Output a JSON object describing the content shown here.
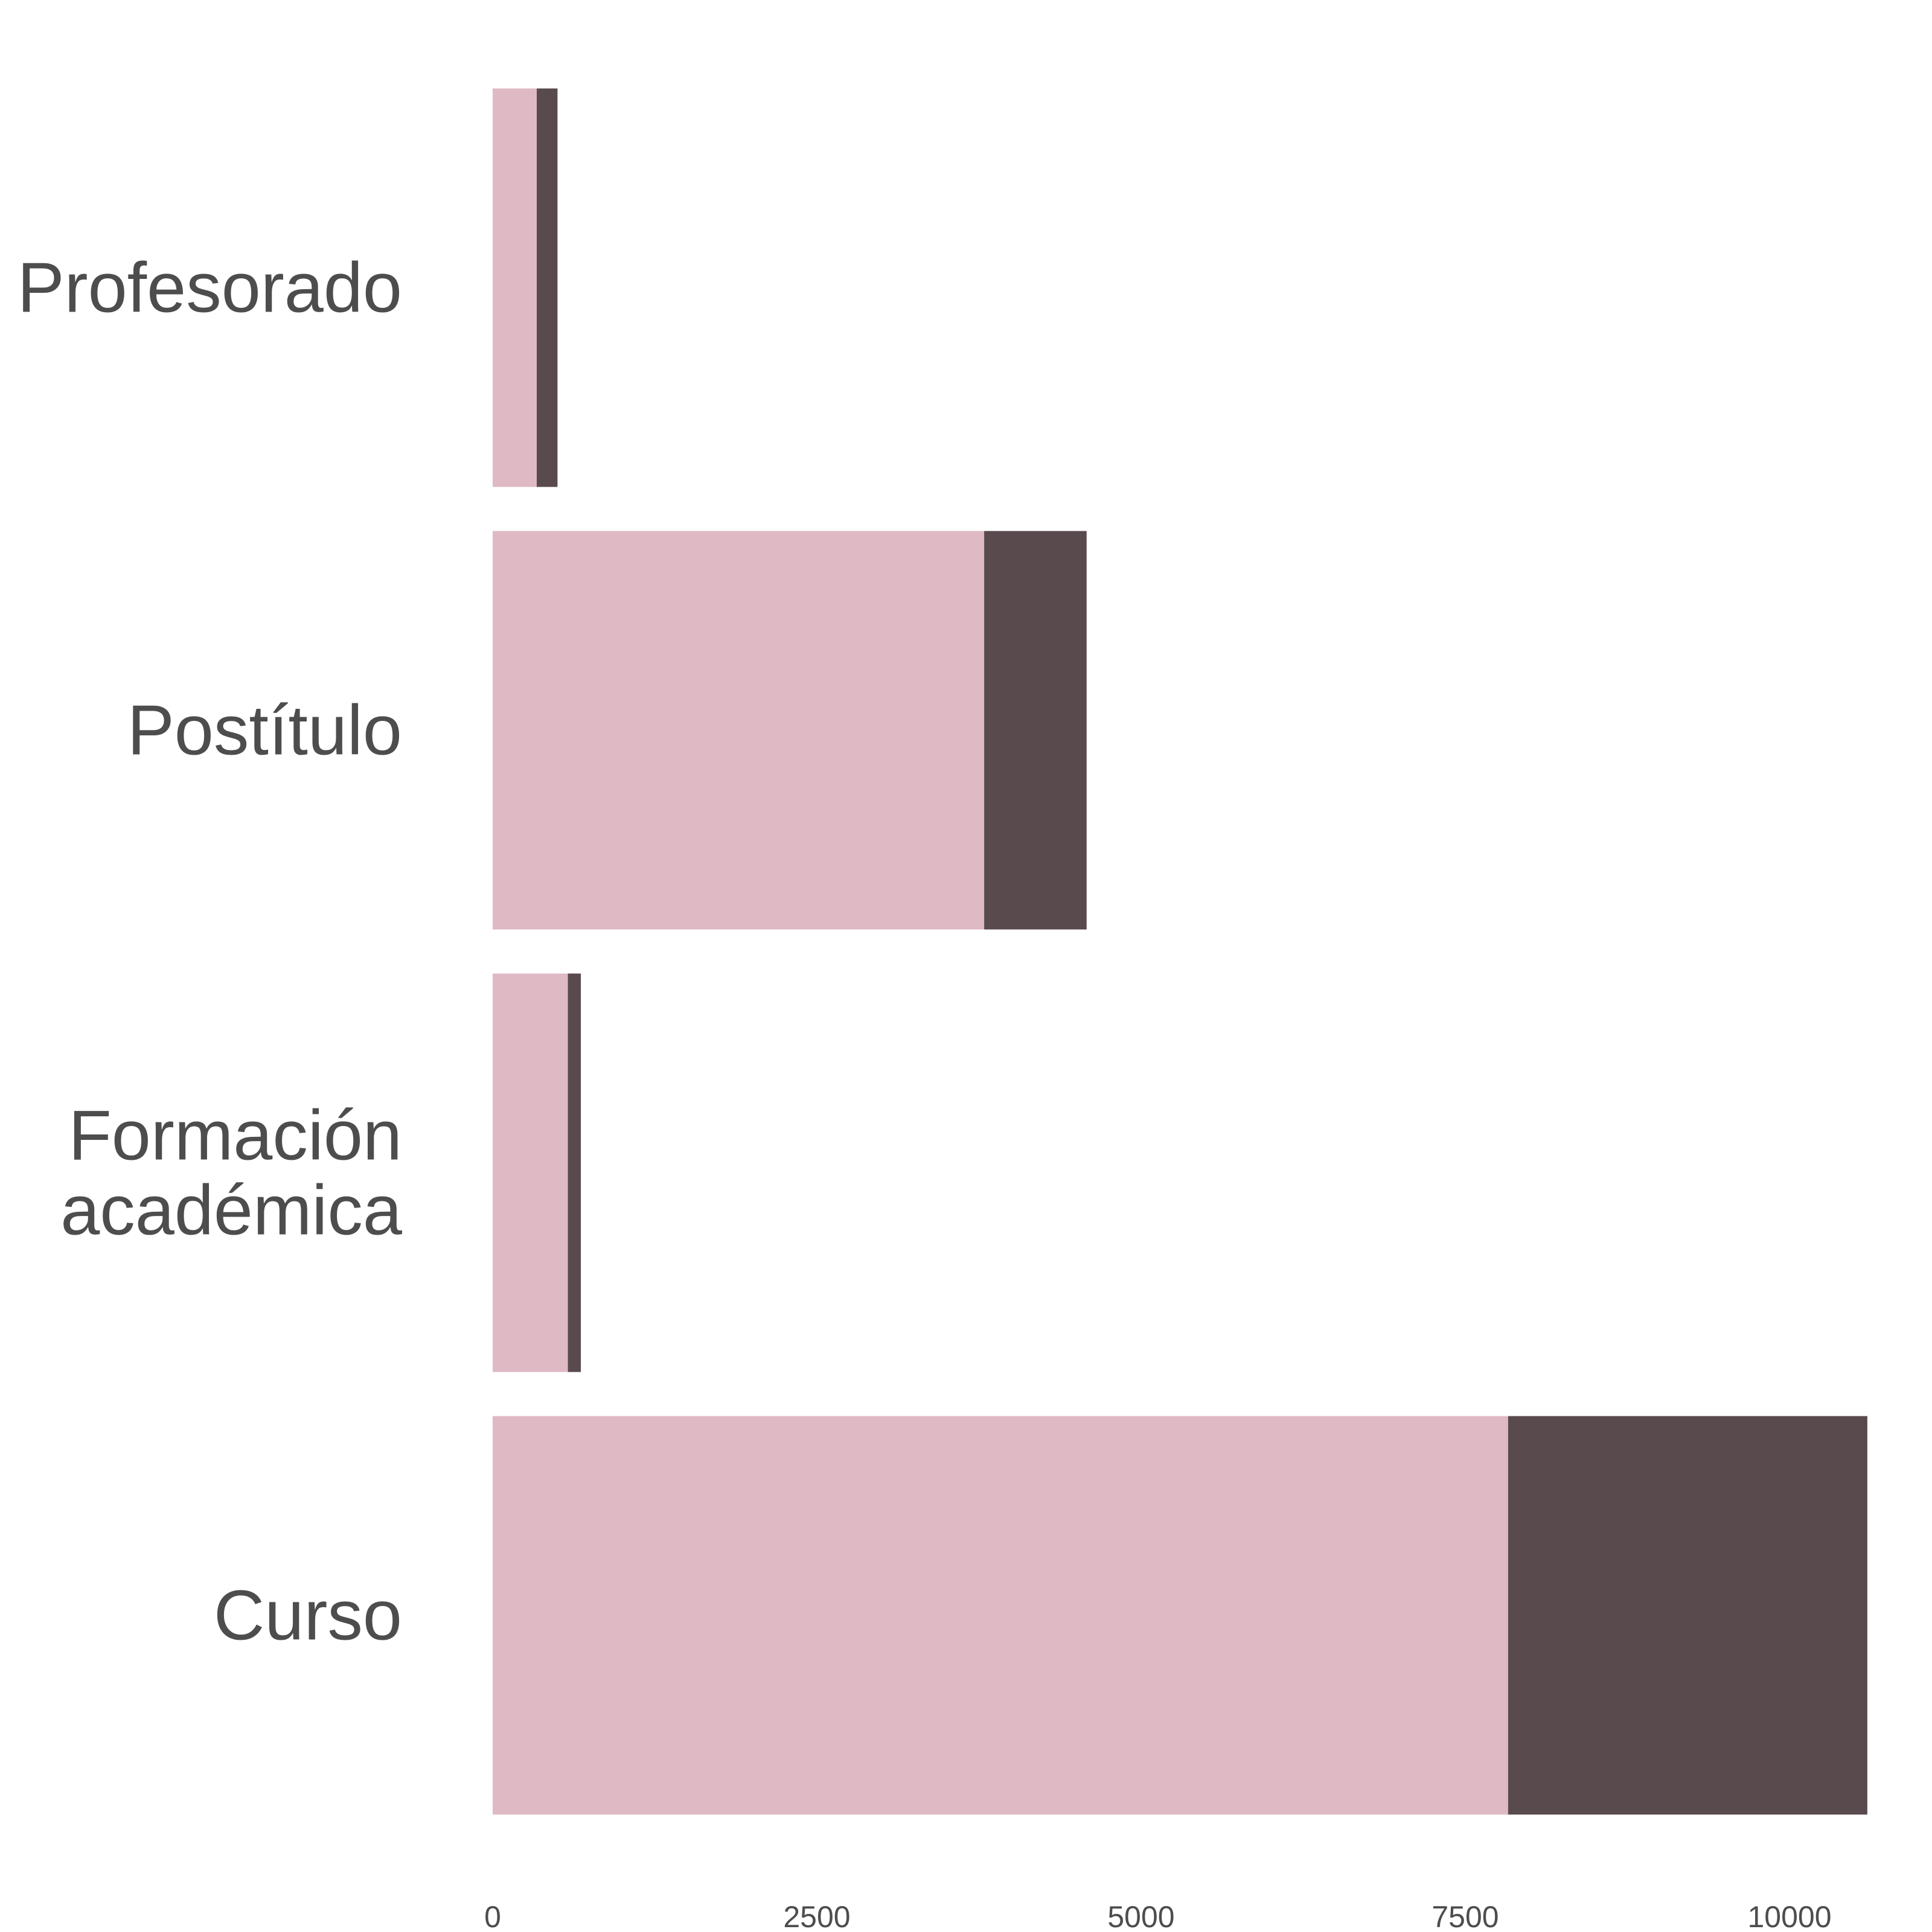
{
  "chart_data": {
    "type": "bar",
    "orientation": "horizontal",
    "stacked": true,
    "title": "",
    "xlabel": "",
    "ylabel": "",
    "categories": [
      [
        "Profesorado"
      ],
      [
        "Postítulo"
      ],
      [
        "Formación",
        "académica"
      ],
      [
        "Curso"
      ]
    ],
    "series": [
      {
        "color": "#dfb9c3",
        "values": [
          340,
          3790,
          580,
          7830
        ]
      },
      {
        "color": "#594a4e",
        "values": [
          160,
          790,
          100,
          2770
        ]
      }
    ],
    "xlim": [
      0,
      10600
    ],
    "xticks": [
      0,
      2500,
      5000,
      7500,
      10000
    ],
    "grid": false,
    "legend": "none"
  }
}
